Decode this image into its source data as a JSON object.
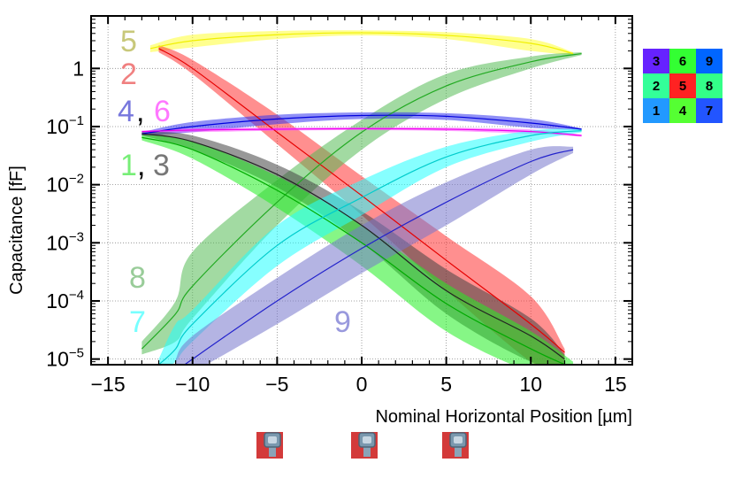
{
  "chart_data": {
    "type": "line",
    "title": "",
    "xlabel": "Nominal Horizontal Position [µm]",
    "ylabel": "Capacitance [fF]",
    "xlim": [
      -16,
      16
    ],
    "ylim": [
      8e-06,
      8
    ],
    "yscale": "log",
    "grid": true,
    "x_ticks": [
      -15,
      -10,
      -5,
      0,
      5,
      10,
      15
    ],
    "y_ticks": [
      {
        "value": 1,
        "base": "1",
        "exp": ""
      },
      {
        "value": 0.1,
        "base": "10",
        "exp": "−1"
      },
      {
        "value": 0.01,
        "base": "10",
        "exp": "−2"
      },
      {
        "value": 0.001,
        "base": "10",
        "exp": "−3"
      },
      {
        "value": 0.0001,
        "base": "10",
        "exp": "−4"
      },
      {
        "value": 1e-05,
        "base": "10",
        "exp": "−5"
      }
    ],
    "series": [
      {
        "name": "5",
        "color": "#f0f000",
        "band_color": "#ffff33",
        "x": [
          -12.5,
          -10,
          -5,
          0,
          5,
          10,
          12.5
        ],
        "center": [
          2.2,
          3.0,
          3.8,
          4.1,
          3.7,
          2.7,
          1.8
        ],
        "lower": [
          1.9,
          2.3,
          3.2,
          3.7,
          3.2,
          2.0,
          1.7
        ],
        "upper": [
          2.5,
          3.8,
          4.4,
          4.5,
          4.2,
          3.2,
          1.9
        ]
      },
      {
        "name": "2",
        "color": "#e60000",
        "band_color": "#ff3333",
        "x": [
          -12,
          -10,
          -5,
          0,
          5,
          10,
          12
        ],
        "center": [
          2.2,
          1.0,
          0.08,
          0.0065,
          0.0005,
          4e-05,
          1.3e-05
        ],
        "lower": [
          1.9,
          0.8,
          0.05,
          0.003,
          0.00015,
          9e-06,
          6e-06
        ],
        "upper": [
          2.5,
          1.4,
          0.16,
          0.014,
          0.0013,
          0.00012,
          1.5e-05
        ]
      },
      {
        "name": "8",
        "color": "#22aa22",
        "band_color": "#55bb55",
        "x": [
          -13,
          -11,
          -10,
          -5,
          0,
          5,
          10,
          13
        ],
        "center": [
          1.5e-05,
          6e-05,
          0.00018,
          0.005,
          0.08,
          0.5,
          1.3,
          1.8
        ],
        "lower": [
          1.2e-05,
          2e-05,
          5e-05,
          0.002,
          0.04,
          0.3,
          1.0,
          1.7
        ],
        "upper": [
          2e-05,
          0.0001,
          0.0007,
          0.012,
          0.13,
          0.8,
          1.6,
          1.9
        ]
      },
      {
        "name": "4",
        "color": "#0000dd",
        "band_color": "#3333ee",
        "x": [
          -13,
          -10,
          -5,
          0,
          5,
          10,
          13
        ],
        "center": [
          0.075,
          0.1,
          0.135,
          0.155,
          0.15,
          0.115,
          0.09
        ],
        "lower": [
          0.07,
          0.08,
          0.11,
          0.135,
          0.13,
          0.095,
          0.087
        ],
        "upper": [
          0.08,
          0.12,
          0.16,
          0.175,
          0.17,
          0.135,
          0.093
        ]
      },
      {
        "name": "6",
        "color": "#ee00ee",
        "band_color": "#ff55ff",
        "x": [
          -13,
          -10,
          -5,
          0,
          5,
          10,
          13
        ],
        "center": [
          0.082,
          0.087,
          0.09,
          0.092,
          0.09,
          0.082,
          0.07
        ],
        "lower": [
          0.08,
          0.08,
          0.085,
          0.087,
          0.084,
          0.075,
          0.067
        ],
        "upper": [
          0.085,
          0.093,
          0.096,
          0.097,
          0.096,
          0.089,
          0.073
        ]
      },
      {
        "name": "3",
        "color": "#222222",
        "band_color": "#444444",
        "x": [
          -13,
          -10,
          -5,
          0,
          5,
          10,
          12
        ],
        "center": [
          0.075,
          0.055,
          0.015,
          0.002,
          0.00015,
          2.5e-05,
          1e-05
        ],
        "lower": [
          0.07,
          0.04,
          0.009,
          0.001,
          6e-05,
          9e-06,
          8e-06
        ],
        "upper": [
          0.08,
          0.07,
          0.022,
          0.0035,
          0.00035,
          5e-05,
          1.2e-05
        ]
      },
      {
        "name": "1",
        "color": "#00aa00",
        "band_color": "#22ee22",
        "x": [
          -13,
          -10,
          -5,
          0,
          5,
          10,
          12.5
        ],
        "center": [
          0.065,
          0.04,
          0.008,
          0.001,
          9e-05,
          1.5e-05,
          7e-06
        ],
        "lower": [
          0.058,
          0.028,
          0.004,
          0.0004,
          3e-05,
          6e-06,
          5e-06
        ],
        "upper": [
          0.072,
          0.055,
          0.014,
          0.002,
          0.0002,
          3e-05,
          9e-06
        ]
      },
      {
        "name": "7",
        "color": "#00cccc",
        "band_color": "#22ffff",
        "x": [
          -12,
          -11,
          -10,
          -5,
          0,
          5,
          10,
          13
        ],
        "center": [
          8e-06,
          1.5e-05,
          4e-05,
          0.0009,
          0.006,
          0.03,
          0.07,
          0.085
        ],
        "lower": [
          6e-06,
          9e-06,
          2e-05,
          0.0004,
          0.003,
          0.02,
          0.055,
          0.08
        ],
        "upper": [
          1e-05,
          4e-05,
          7e-05,
          0.002,
          0.012,
          0.045,
          0.085,
          0.09
        ]
      },
      {
        "name": "9",
        "color": "#2222cc",
        "band_color": "#7777cc",
        "x": [
          -11,
          -10,
          -5,
          0,
          5,
          10,
          12.5
        ],
        "center": [
          6e-06,
          1e-05,
          0.0001,
          0.0008,
          0.005,
          0.025,
          0.04
        ],
        "lower": [
          5e-06,
          6e-06,
          4e-05,
          0.0003,
          0.002,
          0.015,
          0.035
        ],
        "upper": [
          1e-05,
          2.5e-05,
          0.00025,
          0.002,
          0.011,
          0.04,
          0.045
        ]
      }
    ],
    "annotations": [
      {
        "text": "5",
        "series": "5",
        "color": "#c8c87a"
      },
      {
        "text": "2",
        "series": "2",
        "color": "#f08080"
      },
      {
        "text": "4",
        "series": "4",
        "color": "#7777dd"
      },
      {
        "text": ",",
        "series": "",
        "color": "#000000"
      },
      {
        "text": "6",
        "series": "6",
        "color": "#ff77ff"
      },
      {
        "text": "1",
        "series": "1",
        "color": "#77ee77"
      },
      {
        "text": ",",
        "series": "",
        "color": "#000000"
      },
      {
        "text": "3",
        "series": "3",
        "color": "#777777"
      },
      {
        "text": "8",
        "series": "8",
        "color": "#99cc99"
      },
      {
        "text": "7",
        "series": "7",
        "color": "#77ffff"
      },
      {
        "text": "9",
        "series": "9",
        "color": "#9999dd"
      }
    ],
    "pixel_map": [
      {
        "label": "3",
        "color": "#6622ff"
      },
      {
        "label": "6",
        "color": "#33ff33"
      },
      {
        "label": "9",
        "color": "#0066ff"
      },
      {
        "label": "2",
        "color": "#33ff99"
      },
      {
        "label": "5",
        "color": "#ff2222"
      },
      {
        "label": "8",
        "color": "#33ff88"
      },
      {
        "label": "1",
        "color": "#2299ff"
      },
      {
        "label": "4",
        "color": "#55ff33"
      },
      {
        "label": "7",
        "color": "#2255ff"
      }
    ],
    "pixel_icons_count": 3
  }
}
